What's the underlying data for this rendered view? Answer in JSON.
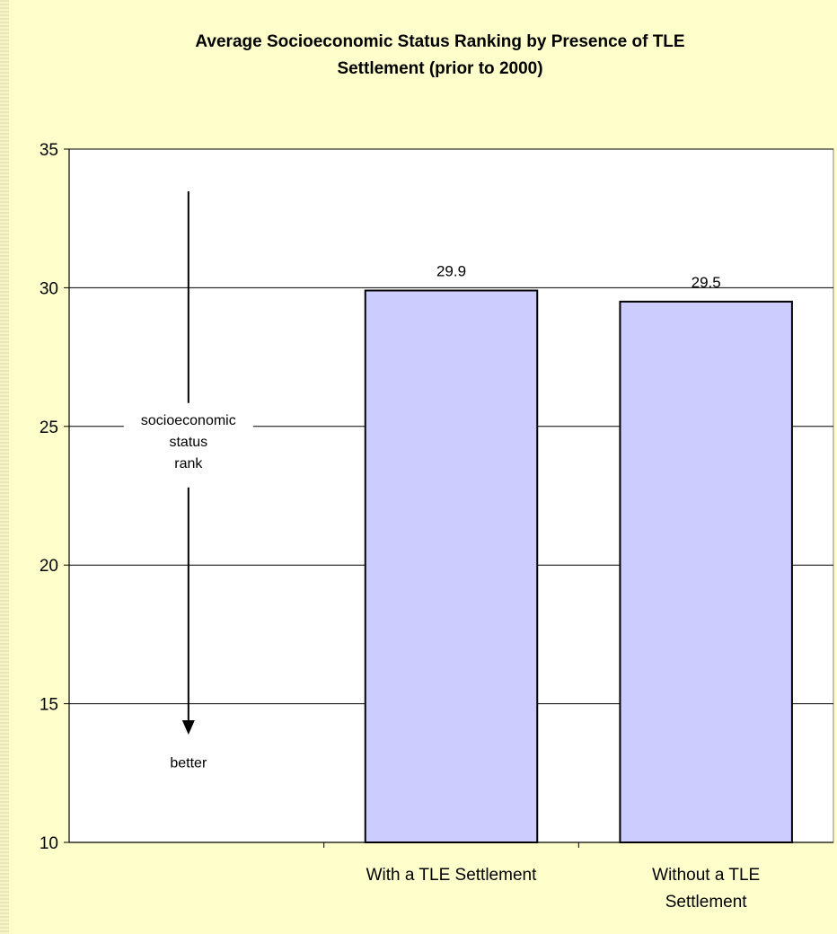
{
  "chart_data": {
    "type": "bar",
    "title_lines": [
      "Average Socioeconomic Status Ranking by Presence of TLE",
      "Settlement (prior to 2000)"
    ],
    "categories": [
      {
        "lines": [
          "With a TLE Settlement"
        ]
      },
      {
        "lines": [
          "Without a TLE",
          "Settlement"
        ]
      }
    ],
    "values": [
      29.9,
      29.5
    ],
    "data_labels": [
      "29.9",
      "29.5"
    ],
    "xlabel": "",
    "ylabel": "",
    "ylim": [
      10,
      35
    ],
    "yticks": [
      10,
      15,
      20,
      25,
      30,
      35
    ],
    "grid": true,
    "legend": "none",
    "annotation": {
      "label_lines": [
        "socioeconomic",
        "status",
        "rank"
      ],
      "direction_label": "better"
    },
    "colors": {
      "background": "#ffffcc",
      "plot_area": "#ffffff",
      "bar_fill": "#ccccff",
      "bar_stroke": "#000000",
      "grid": "#000000"
    }
  }
}
